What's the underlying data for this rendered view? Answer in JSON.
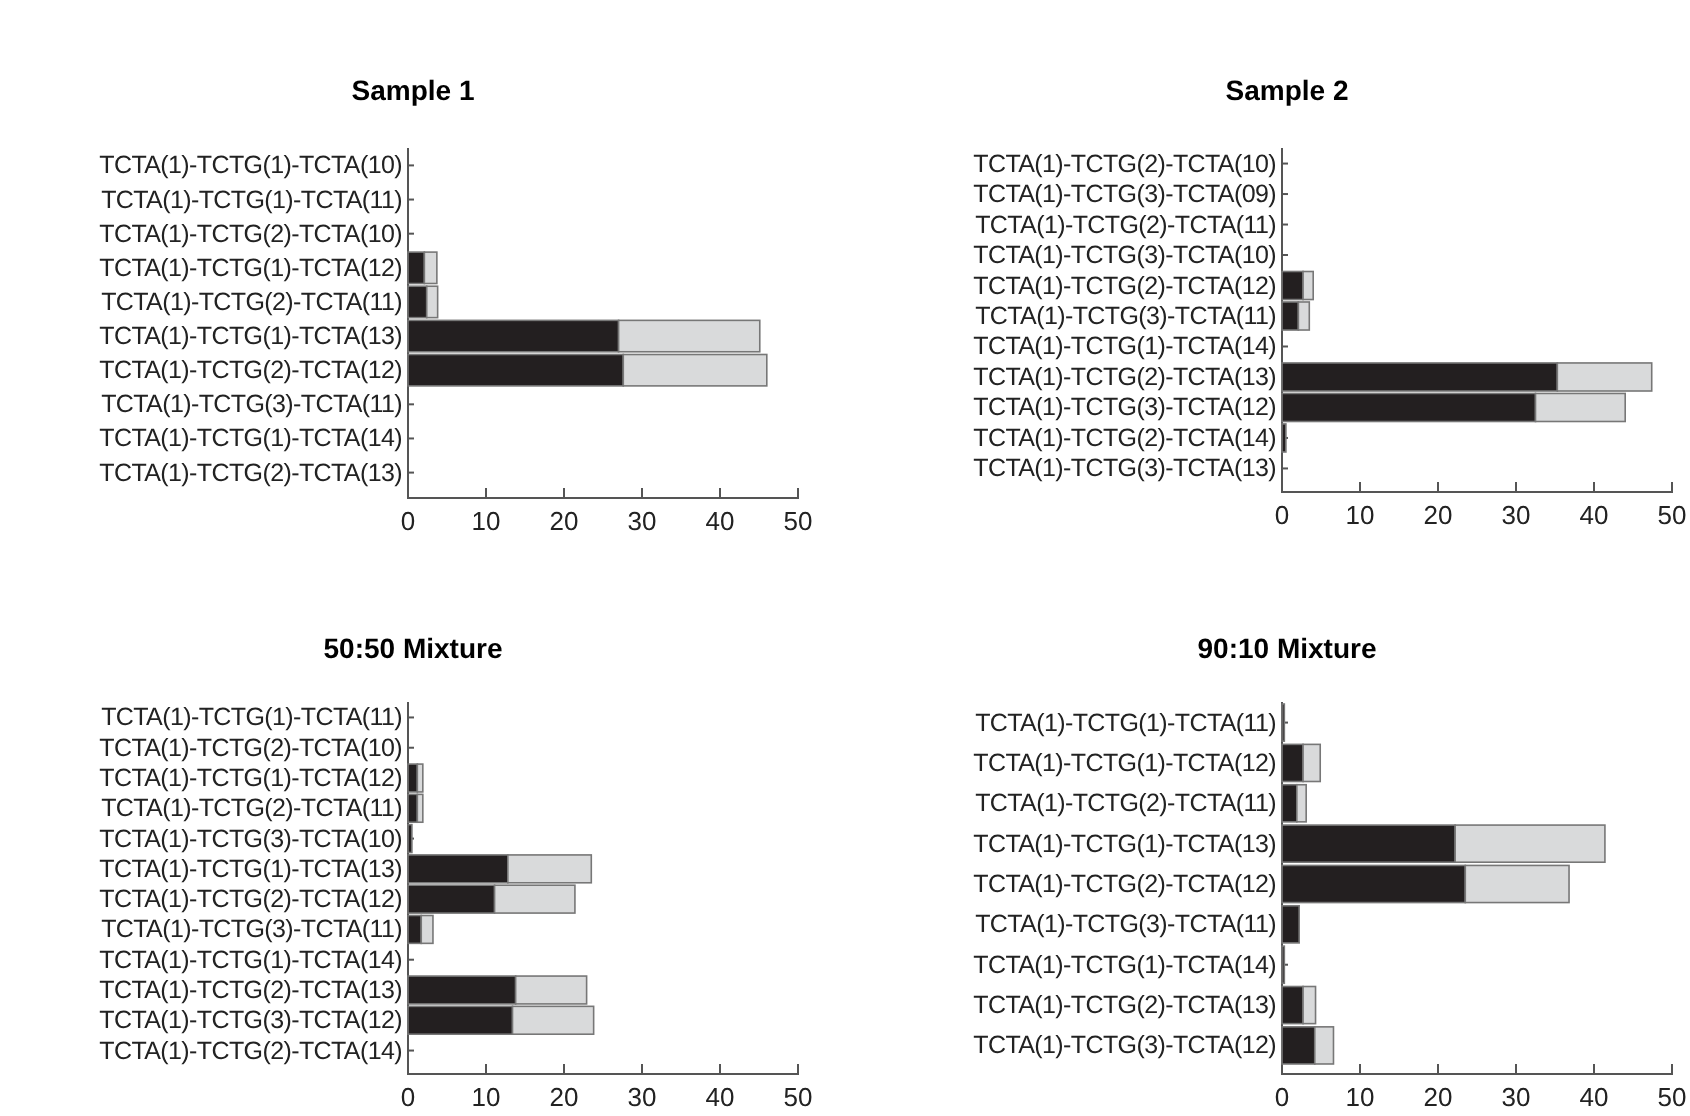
{
  "chart_data": [
    {
      "type": "bar",
      "orientation": "horizontal",
      "stacked": true,
      "title": "Sample 1",
      "categories": [
        "TCTA(1)-TCTG(1)-TCTA(10)",
        "TCTA(1)-TCTG(1)-TCTA(11)",
        "TCTA(1)-TCTG(2)-TCTA(10)",
        "TCTA(1)-TCTG(1)-TCTA(12)",
        "TCTA(1)-TCTG(2)-TCTA(11)",
        "TCTA(1)-TCTG(1)-TCTA(13)",
        "TCTA(1)-TCTG(2)-TCTA(12)",
        "TCTA(1)-TCTG(3)-TCTA(11)",
        "TCTA(1)-TCTG(1)-TCTA(14)",
        "TCTA(1)-TCTG(2)-TCTA(13)"
      ],
      "series": [
        {
          "color": "#231f20",
          "values": [
            0,
            0,
            0,
            2.1,
            2.4,
            27.0,
            27.6,
            0,
            0,
            0
          ]
        },
        {
          "color": "#d9dadb",
          "values": [
            0,
            0,
            0,
            1.6,
            1.4,
            18.1,
            18.4,
            0,
            0,
            0
          ]
        }
      ],
      "xlim": [
        0,
        50
      ],
      "xticks": [
        0,
        10,
        20,
        30,
        40,
        50
      ]
    },
    {
      "type": "bar",
      "orientation": "horizontal",
      "stacked": true,
      "title": "Sample 2",
      "categories": [
        "TCTA(1)-TCTG(2)-TCTA(10)",
        "TCTA(1)-TCTG(3)-TCTA(09)",
        "TCTA(1)-TCTG(2)-TCTA(11)",
        "TCTA(1)-TCTG(3)-TCTA(10)",
        "TCTA(1)-TCTG(2)-TCTA(12)",
        "TCTA(1)-TCTG(3)-TCTA(11)",
        "TCTA(1)-TCTG(1)-TCTA(14)",
        "TCTA(1)-TCTG(2)-TCTA(13)",
        "TCTA(1)-TCTG(3)-TCTA(12)",
        "TCTA(1)-TCTG(2)-TCTA(14)",
        "TCTA(1)-TCTG(3)-TCTA(13)"
      ],
      "series": [
        {
          "color": "#231f20",
          "values": [
            0,
            0,
            0,
            0,
            2.7,
            2.1,
            0,
            35.3,
            32.5,
            0.5,
            0
          ]
        },
        {
          "color": "#d9dadb",
          "values": [
            0,
            0,
            0,
            0,
            1.3,
            1.4,
            0,
            12.1,
            11.5,
            0,
            0
          ]
        }
      ],
      "xlim": [
        0,
        50
      ],
      "xticks": [
        0,
        10,
        20,
        30,
        40,
        50
      ]
    },
    {
      "type": "bar",
      "orientation": "horizontal",
      "stacked": true,
      "title": "50:50 Mixture",
      "categories": [
        "TCTA(1)-TCTG(1)-TCTA(11)",
        "TCTA(1)-TCTG(2)-TCTA(10)",
        "TCTA(1)-TCTG(1)-TCTA(12)",
        "TCTA(1)-TCTG(2)-TCTA(11)",
        "TCTA(1)-TCTG(3)-TCTA(10)",
        "TCTA(1)-TCTG(1)-TCTA(13)",
        "TCTA(1)-TCTG(2)-TCTA(12)",
        "TCTA(1)-TCTG(3)-TCTA(11)",
        "TCTA(1)-TCTG(1)-TCTA(14)",
        "TCTA(1)-TCTG(2)-TCTA(13)",
        "TCTA(1)-TCTG(3)-TCTA(12)",
        "TCTA(1)-TCTG(2)-TCTA(14)"
      ],
      "series": [
        {
          "color": "#231f20",
          "values": [
            0,
            0,
            1.2,
            1.2,
            0.5,
            12.8,
            11.1,
            1.7,
            0,
            13.8,
            13.4,
            0
          ]
        },
        {
          "color": "#d9dadb",
          "values": [
            0,
            0,
            0.7,
            0.7,
            0,
            10.7,
            10.3,
            1.5,
            0,
            9.1,
            10.4,
            0
          ]
        }
      ],
      "xlim": [
        0,
        50
      ],
      "xticks": [
        0,
        10,
        20,
        30,
        40,
        50
      ]
    },
    {
      "type": "bar",
      "orientation": "horizontal",
      "stacked": true,
      "title": "90:10 Mixture",
      "categories": [
        "TCTA(1)-TCTG(1)-TCTA(11)",
        "TCTA(1)-TCTG(1)-TCTA(12)",
        "TCTA(1)-TCTG(2)-TCTA(11)",
        "TCTA(1)-TCTG(1)-TCTA(13)",
        "TCTA(1)-TCTG(2)-TCTA(12)",
        "TCTA(1)-TCTG(3)-TCTA(11)",
        "TCTA(1)-TCTG(1)-TCTA(14)",
        "TCTA(1)-TCTG(2)-TCTA(13)",
        "TCTA(1)-TCTG(3)-TCTA(12)"
      ],
      "series": [
        {
          "color": "#231f20",
          "values": [
            0.3,
            2.7,
            1.9,
            22.2,
            23.5,
            2.2,
            0.3,
            2.7,
            4.2
          ]
        },
        {
          "color": "#d9dadb",
          "values": [
            0,
            2.2,
            1.2,
            19.2,
            13.3,
            0,
            0,
            1.6,
            2.4
          ]
        }
      ],
      "xlim": [
        0,
        50
      ],
      "xticks": [
        0,
        10,
        20,
        30,
        40,
        50
      ]
    }
  ]
}
